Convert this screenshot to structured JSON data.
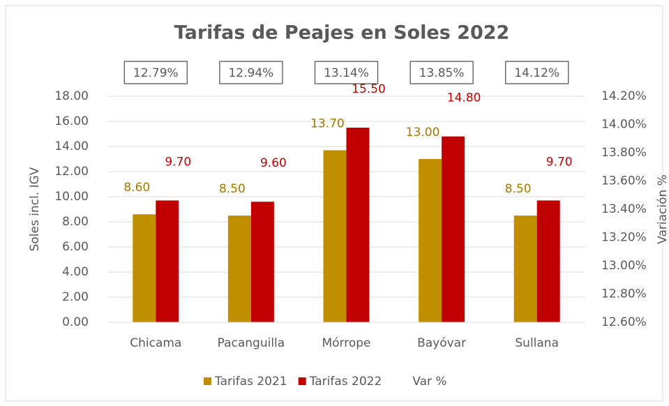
{
  "chart_data": {
    "type": "bar",
    "title": "Tarifas de Peajes en Soles 2022",
    "y_label": "Soles incl. IGV",
    "y2_label": "Variación %",
    "categories": [
      "Chicama",
      "Pacanguilla",
      "Mórrope",
      "Bayóvar",
      "Sullana"
    ],
    "series": [
      {
        "name": "Tarifas 2021",
        "color": "#bf8f00",
        "values": [
          8.6,
          8.5,
          13.7,
          13.0,
          8.5
        ],
        "value_labels": [
          "8.60",
          "8.50",
          "13.70",
          "13.00",
          "8.50"
        ]
      },
      {
        "name": "Tarifas 2022",
        "color": "#c00000",
        "values": [
          9.7,
          9.6,
          15.5,
          14.8,
          9.7
        ],
        "value_labels": [
          "9.70",
          "9.60",
          "15.50",
          "14.80",
          "9.70"
        ]
      },
      {
        "name": "Var %",
        "axis": "y2",
        "values": [
          12.79,
          12.94,
          13.14,
          13.85,
          14.12
        ],
        "value_labels": [
          "12.79%",
          "12.94%",
          "13.14%",
          "13.85%",
          "14.12%"
        ]
      }
    ],
    "ylim": [
      0,
      18
    ],
    "yticks": [
      {
        "value": 0,
        "label": "0.00"
      },
      {
        "value": 2,
        "label": "2.00"
      },
      {
        "value": 4,
        "label": "4.00"
      },
      {
        "value": 6,
        "label": "6.00"
      },
      {
        "value": 8,
        "label": "8.00"
      },
      {
        "value": 10,
        "label": "10.00"
      },
      {
        "value": 12,
        "label": "12.00"
      },
      {
        "value": 14,
        "label": "14.00"
      },
      {
        "value": 16,
        "label": "16.00"
      },
      {
        "value": 18,
        "label": "18.00"
      }
    ],
    "y2lim": [
      12.6,
      14.2
    ],
    "y2ticks": [
      {
        "value": 12.6,
        "label": "12.60%"
      },
      {
        "value": 12.8,
        "label": "12.80%"
      },
      {
        "value": 13.0,
        "label": "13.00%"
      },
      {
        "value": 13.2,
        "label": "13.20%"
      },
      {
        "value": 13.4,
        "label": "13.40%"
      },
      {
        "value": 13.6,
        "label": "13.60%"
      },
      {
        "value": 13.8,
        "label": "13.80%"
      },
      {
        "value": 14.0,
        "label": "14.00%"
      },
      {
        "value": 14.2,
        "label": "14.20%"
      }
    ],
    "grid": true,
    "legend": "bottom"
  }
}
